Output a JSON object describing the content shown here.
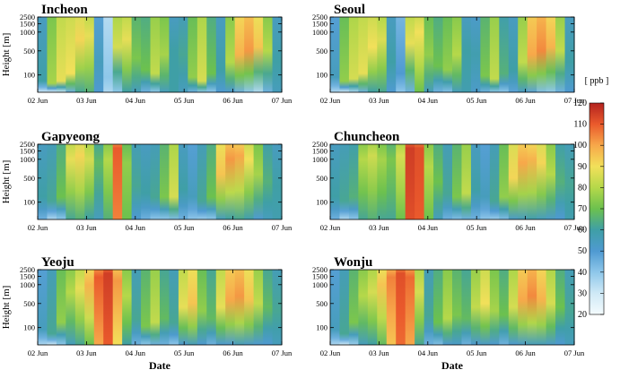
{
  "chart_data": {
    "type": "heatmap",
    "colorbar": {
      "label": "[ ppb ]",
      "ticks": [
        20,
        30,
        40,
        50,
        60,
        70,
        80,
        90,
        100,
        110,
        120
      ],
      "range": [
        20,
        120
      ],
      "colors": [
        "#f4fbfd",
        "#cfe9f6",
        "#8ec7ea",
        "#4f9ad1",
        "#3f9fa6",
        "#6cc14e",
        "#b5d84a",
        "#f2e05a",
        "#f7a84a",
        "#ea5a2c",
        "#b3221f"
      ]
    },
    "x": {
      "label": "Date",
      "ticks": [
        "02 Jun",
        "03 Jun",
        "04 Jun",
        "05 Jun",
        "06 Jun",
        "07 Jun"
      ]
    },
    "y": {
      "label": "Height [m]",
      "ticks": [
        100,
        500,
        1000,
        1500,
        2500
      ]
    },
    "panels": [
      {
        "name": "Incheon",
        "tops": [
          60,
          78,
          88,
          90,
          92,
          88,
          55,
          40,
          85,
          88,
          72,
          70,
          82,
          78,
          60,
          62,
          75,
          85,
          70,
          60,
          80,
          98,
          102,
          95,
          80,
          60
        ],
        "bottoms": [
          30,
          25,
          30,
          45,
          62,
          65,
          50,
          35,
          40,
          60,
          55,
          45,
          40,
          55,
          60,
          55,
          45,
          40,
          40,
          50,
          50,
          45,
          40,
          35,
          45,
          55
        ],
        "heights": [
          0.15,
          0.12,
          0.15,
          0.25,
          0.7,
          0.75,
          0.4,
          0.2,
          0.6,
          0.7,
          0.45,
          0.3,
          0.25,
          0.5,
          0.55,
          0.5,
          0.2,
          0.15,
          0.25,
          0.3,
          0.4,
          0.5,
          0.55,
          0.6,
          0.55,
          0.4
        ]
      },
      {
        "name": "Seoul",
        "tops": [
          55,
          75,
          85,
          88,
          90,
          86,
          60,
          50,
          88,
          90,
          75,
          70,
          75,
          80,
          60,
          58,
          72,
          82,
          65,
          60,
          82,
          100,
          104,
          98,
          82,
          60
        ],
        "bottoms": [
          35,
          28,
          35,
          45,
          60,
          62,
          50,
          40,
          45,
          70,
          55,
          45,
          42,
          55,
          58,
          52,
          45,
          40,
          40,
          48,
          52,
          48,
          42,
          40,
          45,
          50
        ],
        "heights": [
          0.2,
          0.15,
          0.18,
          0.25,
          0.6,
          0.7,
          0.4,
          0.25,
          0.65,
          0.8,
          0.5,
          0.35,
          0.3,
          0.5,
          0.55,
          0.5,
          0.22,
          0.18,
          0.25,
          0.3,
          0.4,
          0.5,
          0.55,
          0.6,
          0.55,
          0.4
        ]
      },
      {
        "name": "Gapyeong",
        "tops": [
          60,
          62,
          70,
          88,
          92,
          85,
          68,
          80,
          110,
          75,
          62,
          60,
          62,
          72,
          85,
          60,
          55,
          62,
          70,
          95,
          102,
          100,
          90,
          78,
          65,
          60
        ],
        "bottoms": [
          45,
          35,
          40,
          62,
          65,
          60,
          55,
          65,
          105,
          70,
          50,
          45,
          40,
          40,
          42,
          45,
          40,
          38,
          40,
          55,
          60,
          62,
          58,
          50,
          55,
          58
        ],
        "heights": [
          0.3,
          0.25,
          0.3,
          0.8,
          0.85,
          0.8,
          0.75,
          0.8,
          0.95,
          0.75,
          0.45,
          0.35,
          0.3,
          0.3,
          0.3,
          0.4,
          0.3,
          0.25,
          0.3,
          0.6,
          0.8,
          0.85,
          0.8,
          0.6,
          0.5,
          0.45
        ]
      },
      {
        "name": "Chuncheon",
        "tops": [
          60,
          62,
          65,
          80,
          84,
          78,
          72,
          85,
          115,
          112,
          80,
          70,
          62,
          72,
          82,
          60,
          55,
          62,
          75,
          92,
          100,
          98,
          92,
          80,
          65,
          62
        ],
        "bottoms": [
          45,
          35,
          40,
          62,
          65,
          62,
          62,
          70,
          112,
          110,
          70,
          55,
          45,
          42,
          45,
          45,
          40,
          38,
          42,
          52,
          55,
          58,
          55,
          52,
          50,
          58
        ],
        "heights": [
          0.3,
          0.25,
          0.3,
          0.8,
          0.85,
          0.8,
          0.8,
          0.85,
          0.95,
          0.95,
          0.7,
          0.5,
          0.35,
          0.3,
          0.35,
          0.4,
          0.3,
          0.25,
          0.3,
          0.55,
          0.75,
          0.8,
          0.75,
          0.6,
          0.5,
          0.45
        ]
      },
      {
        "name": "Yeoju",
        "tops": [
          55,
          62,
          75,
          80,
          88,
          98,
          110,
          115,
          102,
          80,
          62,
          72,
          82,
          68,
          62,
          88,
          95,
          75,
          68,
          88,
          100,
          102,
          95,
          82,
          68,
          62
        ],
        "bottoms": [
          35,
          30,
          40,
          55,
          62,
          70,
          100,
          110,
          90,
          60,
          45,
          40,
          45,
          45,
          40,
          50,
          55,
          50,
          45,
          50,
          50,
          55,
          52,
          50,
          50,
          55
        ],
        "heights": [
          0.2,
          0.15,
          0.3,
          0.7,
          0.75,
          0.8,
          0.9,
          0.95,
          0.85,
          0.65,
          0.35,
          0.25,
          0.3,
          0.35,
          0.3,
          0.5,
          0.55,
          0.45,
          0.35,
          0.5,
          0.6,
          0.65,
          0.6,
          0.55,
          0.5,
          0.45
        ]
      },
      {
        "name": "Wonju",
        "tops": [
          55,
          62,
          72,
          80,
          85,
          95,
          105,
          112,
          108,
          85,
          62,
          70,
          80,
          72,
          68,
          82,
          90,
          78,
          70,
          85,
          100,
          104,
          98,
          85,
          70,
          62
        ],
        "bottoms": [
          35,
          30,
          38,
          55,
          60,
          68,
          95,
          108,
          100,
          62,
          45,
          42,
          50,
          52,
          45,
          50,
          52,
          50,
          45,
          50,
          52,
          55,
          55,
          52,
          50,
          55
        ],
        "heights": [
          0.2,
          0.15,
          0.3,
          0.65,
          0.7,
          0.8,
          0.9,
          0.95,
          0.9,
          0.7,
          0.4,
          0.3,
          0.35,
          0.4,
          0.35,
          0.5,
          0.55,
          0.45,
          0.4,
          0.5,
          0.6,
          0.65,
          0.6,
          0.55,
          0.5,
          0.45
        ]
      }
    ]
  }
}
